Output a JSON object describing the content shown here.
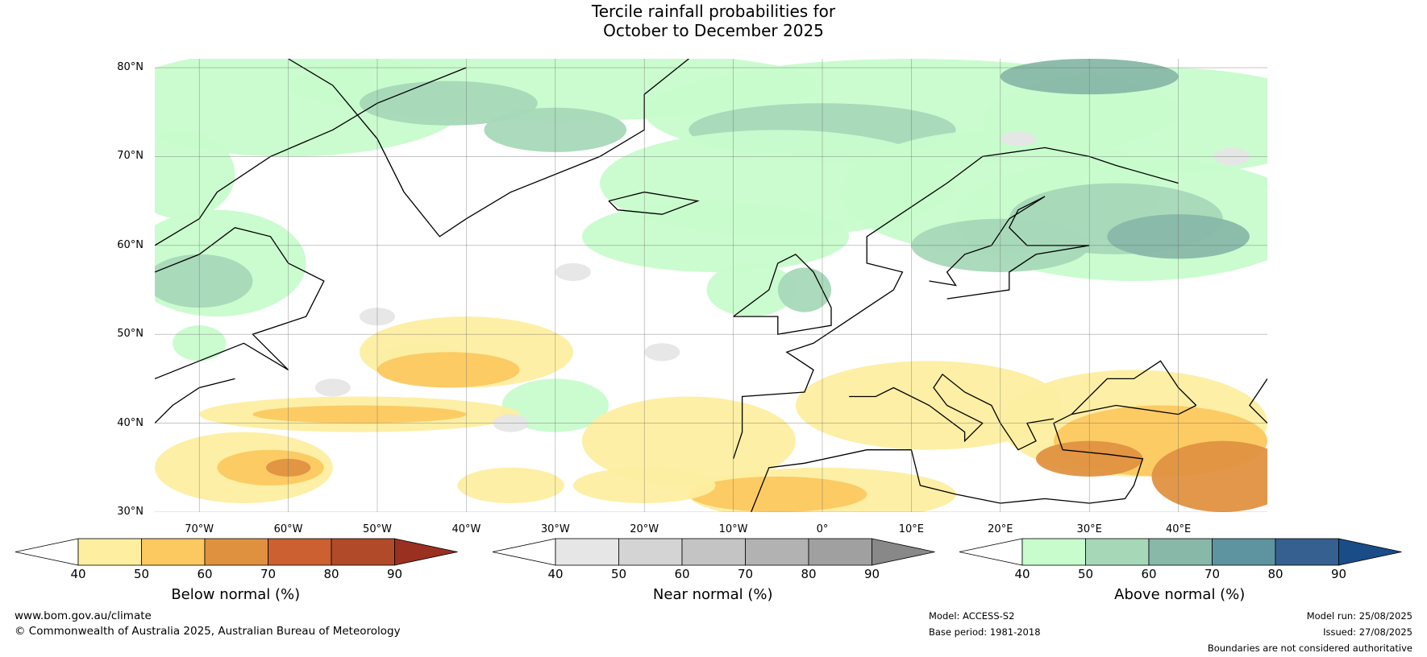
{
  "title": {
    "line1": "Tercile rainfall probabilities for",
    "line2": "October to December 2025"
  },
  "map": {
    "lat_labels": [
      "80°N",
      "70°N",
      "60°N",
      "50°N",
      "40°N",
      "30°N"
    ],
    "lon_labels": [
      "70°W",
      "60°W",
      "50°W",
      "40°W",
      "30°W",
      "20°W",
      "10°W",
      "0°",
      "10°E",
      "20°E",
      "30°E",
      "40°E"
    ]
  },
  "colorbars": [
    {
      "label": "Below normal (%)",
      "ticks": [
        "40",
        "50",
        "60",
        "70",
        "80",
        "90"
      ],
      "under_color": "#ffffff",
      "colors": [
        "#fdeea0",
        "#fcc860",
        "#e09140",
        "#cc6030",
        "#b04a28"
      ],
      "over_color": "#9a3020"
    },
    {
      "label": "Near normal (%)",
      "ticks": [
        "40",
        "50",
        "60",
        "70",
        "80",
        "90"
      ],
      "under_color": "#ffffff",
      "colors": [
        "#e6e6e6",
        "#d4d4d4",
        "#c4c4c4",
        "#b2b2b2",
        "#a0a0a0"
      ],
      "over_color": "#888888"
    },
    {
      "label": "Above normal (%)",
      "ticks": [
        "40",
        "50",
        "60",
        "70",
        "80",
        "90"
      ],
      "under_color": "#ffffff",
      "colors": [
        "#c8fccc",
        "#a6d8b8",
        "#88b8a8",
        "#5e93a0",
        "#356090"
      ],
      "over_color": "#1a4c88"
    }
  ],
  "footer": {
    "website": "www.bom.gov.au/climate",
    "copyright": "© Commonwealth of Australia 2025, Australian Bureau of Meteorology",
    "model": "Model: ACCESS-S2",
    "base_period": "Base period: 1981-2018",
    "model_run": "Model run: 25/08/2025",
    "issued": "Issued: 27/08/2025",
    "disclaimer": "Boundaries are not considered authoritative"
  }
}
